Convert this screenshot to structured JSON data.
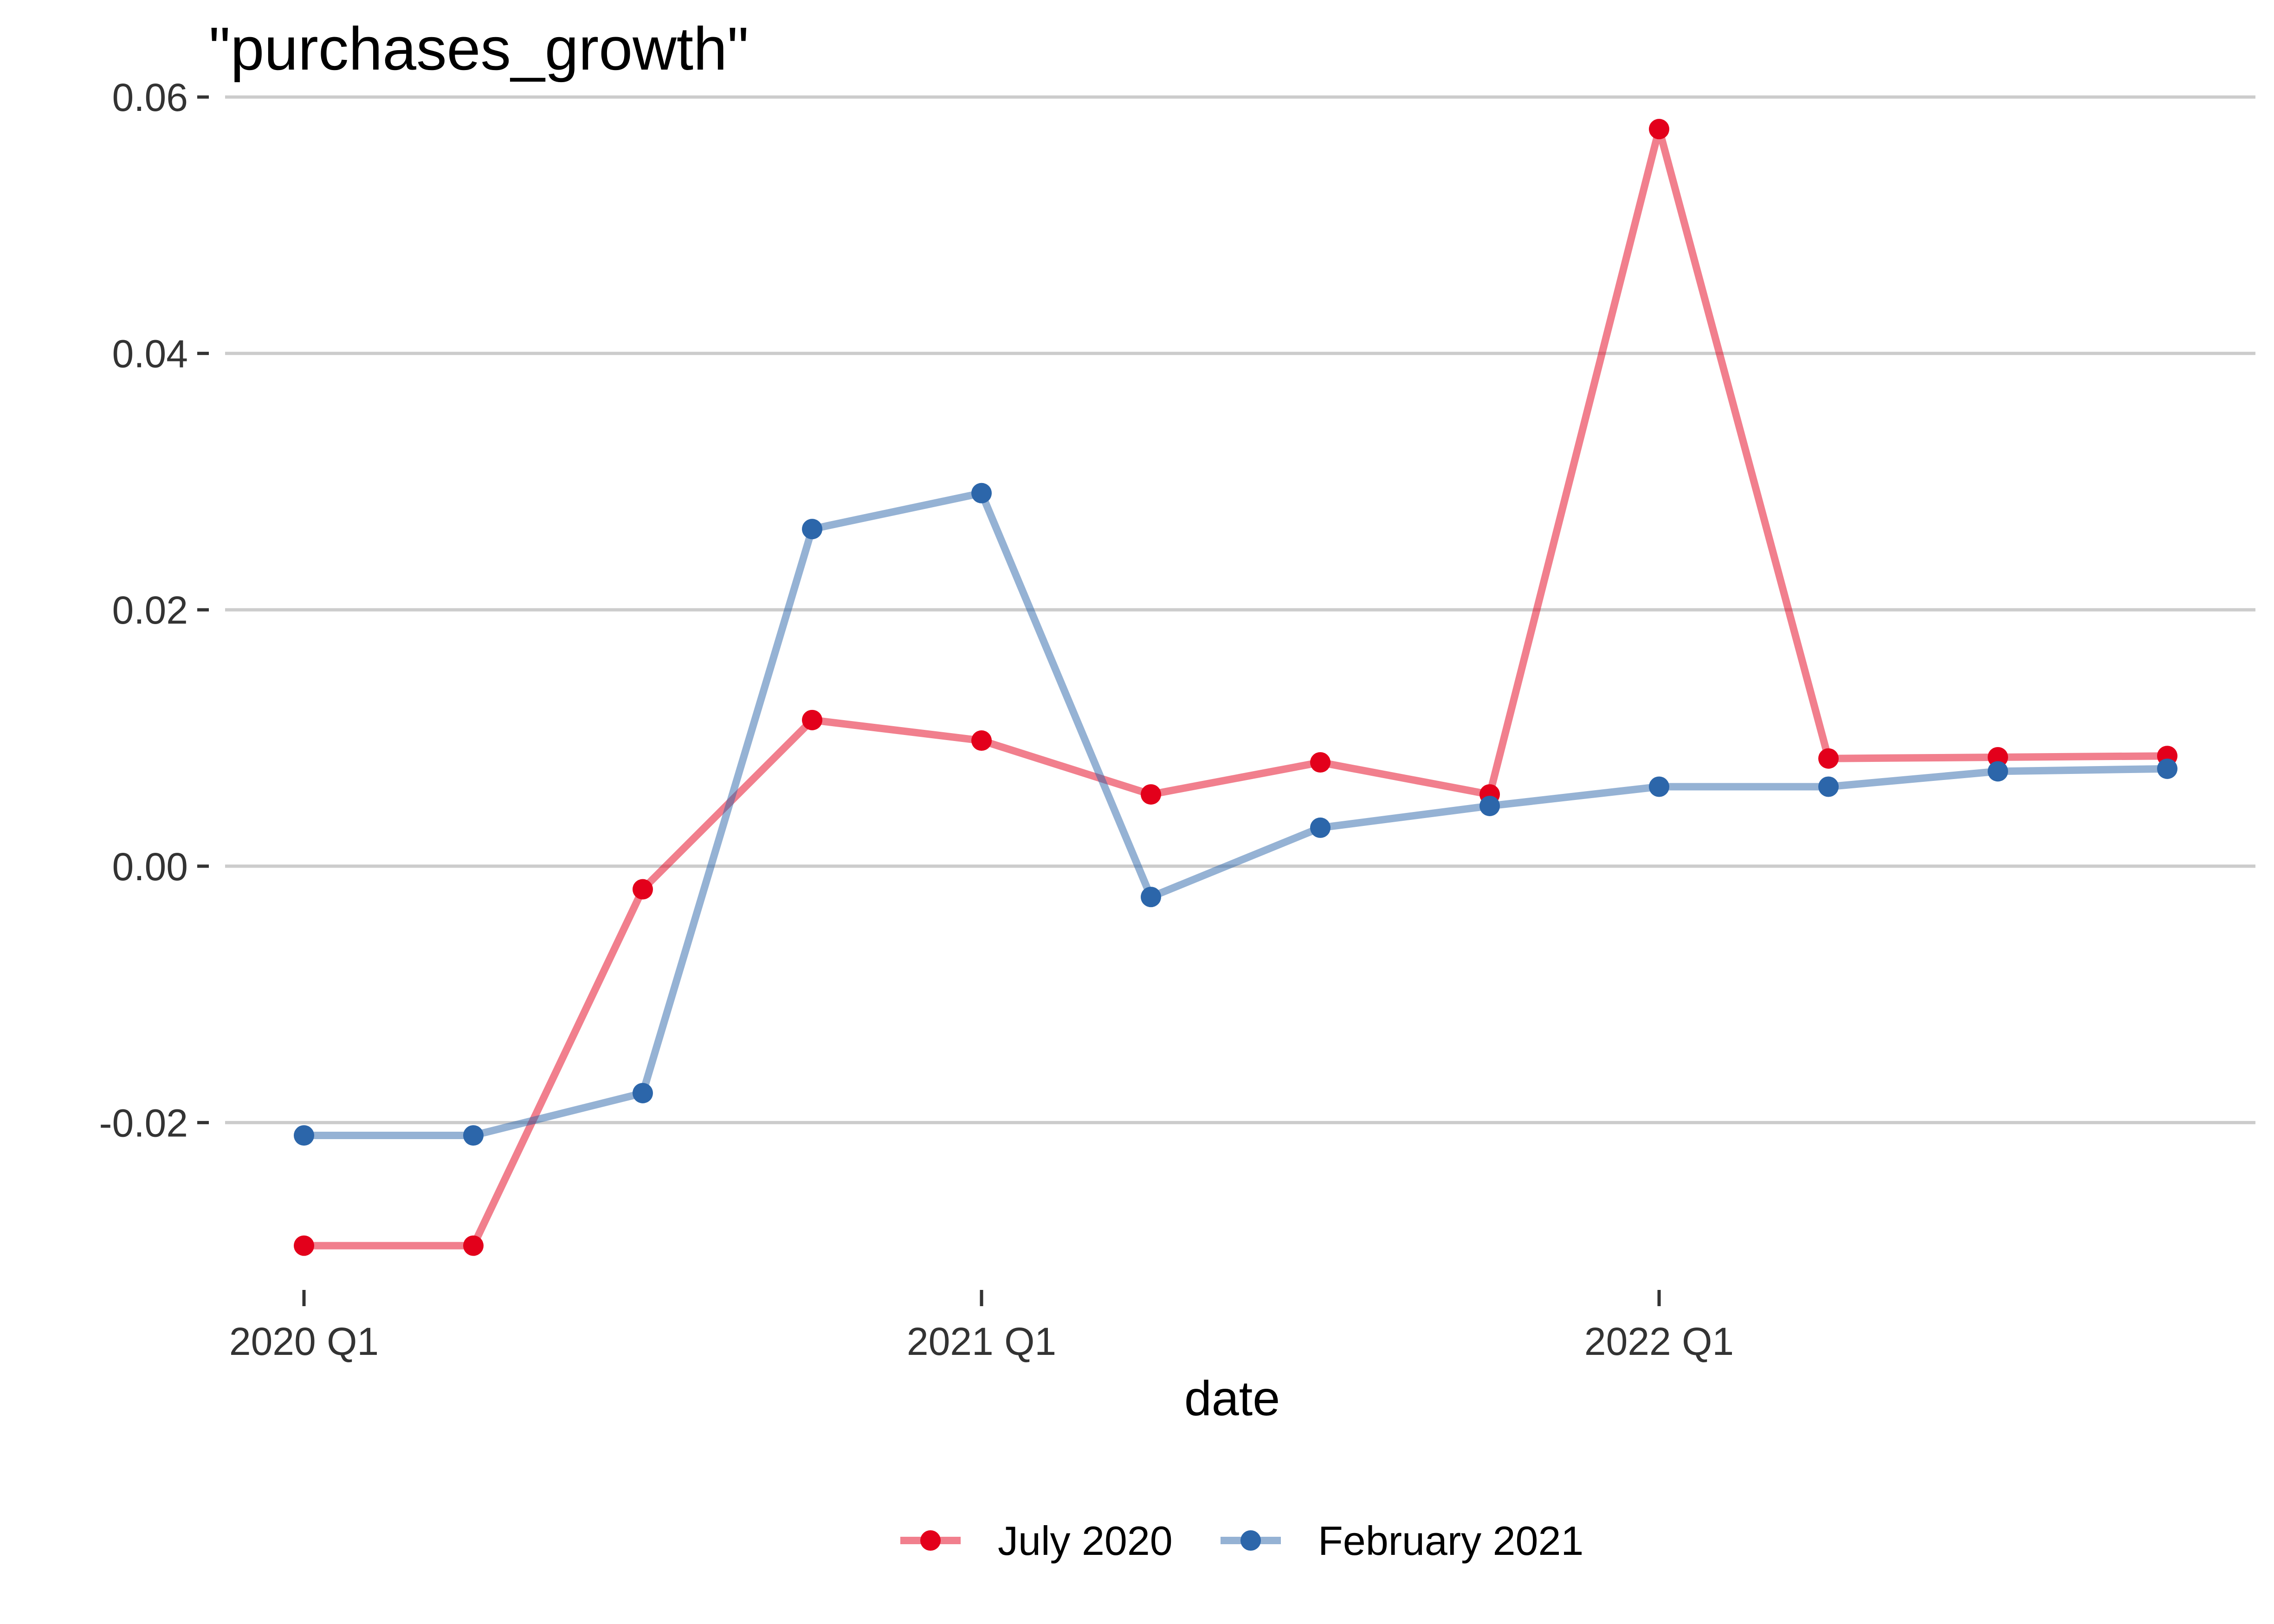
{
  "chart_data": {
    "type": "line",
    "title": "\"purchases_growth\"",
    "xlabel": "date",
    "ylabel": "",
    "x": [
      "2020-01-01",
      "2020-04-01",
      "2020-07-01",
      "2020-10-01",
      "2021-01-01",
      "2021-04-01",
      "2021-07-01",
      "2021-10-01",
      "2022-01-01",
      "2022-04-01",
      "2022-07-01",
      "2022-10-01"
    ],
    "x_tick_labels": [
      "2020 Q1",
      "2021 Q1",
      "2022 Q1"
    ],
    "x_tick_values": [
      "2020-01-01",
      "2021-01-01",
      "2022-01-01"
    ],
    "y_ticks": [
      -0.02,
      0.0,
      0.02,
      0.04,
      0.06
    ],
    "y_tick_labels": [
      "-0.02",
      "0.00",
      "0.02",
      "0.04",
      "0.06"
    ],
    "ylim": [
      -0.0345,
      0.0625
    ],
    "grid": "horizontal-major",
    "legend_position": "bottom",
    "series": [
      {
        "name": "July 2020",
        "color": "#E3001B",
        "values": [
          -0.0296,
          -0.0296,
          -0.0018,
          0.0114,
          0.0098,
          0.0056,
          0.0081,
          0.0056,
          0.0575,
          0.0084,
          0.0085,
          0.0086
        ]
      },
      {
        "name": "February 2021",
        "color": "#2C66AA",
        "values": [
          -0.021,
          -0.021,
          -0.0177,
          0.0263,
          0.0291,
          -0.0024,
          0.003,
          0.0047,
          0.0062,
          0.0062,
          0.0074,
          0.0076
        ]
      }
    ]
  }
}
